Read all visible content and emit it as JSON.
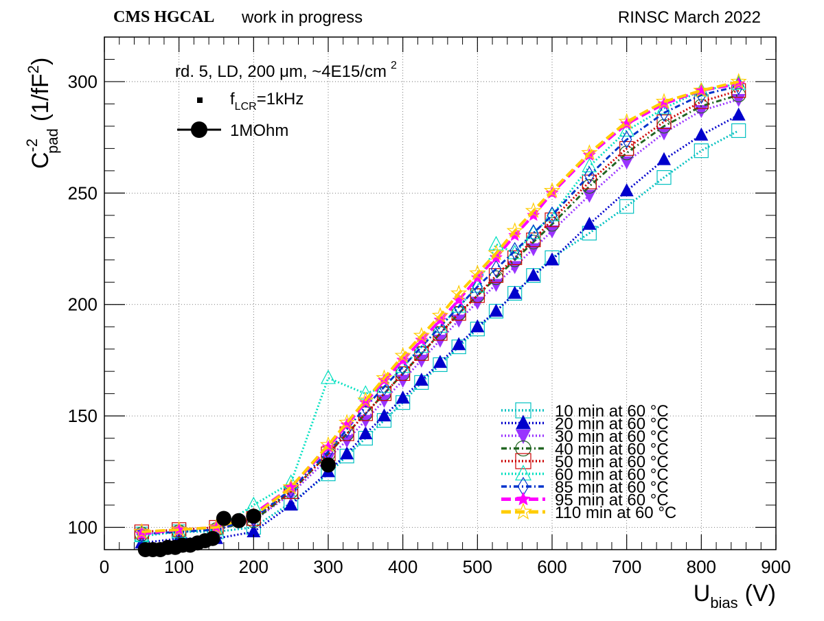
{
  "header": {
    "experiment": "CMS HGCAL",
    "status": "work in progress",
    "right_label": "RINSC March 2022"
  },
  "annotation": {
    "sample": "rd. 5, LD, 200 μm, ~4E15/cm",
    "sample_sup": "2",
    "lcr_prefix": "f",
    "lcr_sub": "LCR",
    "lcr_suffix": "=1kHz",
    "ohm_label": "1MOhm"
  },
  "axes": {
    "x_main": "U",
    "x_sub": "bias",
    "x_unit": "(V)",
    "y_main": "C",
    "y_sup": "-2",
    "y_sub": "pad",
    "y_unit_open": "(1/fF",
    "y_unit_sup": "2",
    "y_unit_close": ")"
  },
  "chart_data": {
    "type": "line",
    "title": "",
    "xlabel": "U_bias (V)",
    "ylabel": "C_pad^-2 (1/fF^2)",
    "xlim": [
      0,
      900
    ],
    "ylim": [
      90,
      320
    ],
    "xticks": [
      0,
      100,
      200,
      300,
      400,
      500,
      600,
      700,
      800,
      900
    ],
    "yticks": [
      100,
      150,
      200,
      250,
      300
    ],
    "grid": true,
    "legend_position": "bottom-right",
    "series": [
      {
        "name": "10 min at 60 °C",
        "color": "#00c0c0",
        "marker": "open-square",
        "dash": "dotted",
        "x": [
          50,
          100,
          150,
          200,
          250,
          300,
          325,
          350,
          375,
          400,
          425,
          450,
          475,
          500,
          525,
          550,
          575,
          600,
          650,
          700,
          750,
          800,
          850
        ],
        "y": [
          97,
          98,
          98,
          100,
          111,
          124,
          132,
          140,
          148,
          156,
          165,
          173,
          181,
          189,
          197,
          205,
          213,
          221,
          232,
          244,
          257,
          269,
          278
        ]
      },
      {
        "name": "20 min at 60 °C",
        "color": "#0000cc",
        "marker": "filled-triangle-up",
        "dash": "dotted",
        "x": [
          50,
          100,
          150,
          200,
          250,
          300,
          325,
          350,
          375,
          400,
          425,
          450,
          475,
          500,
          525,
          550,
          575,
          600,
          650,
          700,
          750,
          800,
          850
        ],
        "y": [
          93,
          95,
          95,
          98,
          110,
          125,
          133,
          142,
          150,
          158,
          166,
          174,
          182,
          190,
          197,
          205,
          213,
          220,
          236,
          251,
          265,
          276,
          285
        ]
      },
      {
        "name": "30 min at 60 °C",
        "color": "#9933ff",
        "marker": "filled-triangle-down",
        "dash": "dotted",
        "x": [
          50,
          100,
          150,
          200,
          250,
          300,
          325,
          350,
          375,
          400,
          425,
          450,
          475,
          500,
          525,
          550,
          575,
          600,
          650,
          700,
          750,
          800,
          850
        ],
        "y": [
          97,
          98,
          99,
          103,
          115,
          131,
          139,
          148,
          157,
          166,
          175,
          184,
          193,
          201,
          209,
          217,
          225,
          233,
          249,
          264,
          277,
          287,
          292
        ]
      },
      {
        "name": "40 min at 60 °C",
        "color": "#226622",
        "marker": "open-circle",
        "dash": "dash-dot",
        "x": [
          50,
          100,
          150,
          200,
          250,
          300,
          325,
          350,
          375,
          400,
          425,
          450,
          475,
          500,
          525,
          550,
          575,
          600,
          650,
          700,
          750,
          800,
          850
        ],
        "y": [
          97,
          98,
          99,
          103,
          116,
          133,
          142,
          151,
          160,
          169,
          178,
          187,
          196,
          204,
          212,
          220,
          228,
          236,
          253,
          268,
          280,
          289,
          294
        ]
      },
      {
        "name": "50 min at 60 °C",
        "color": "#cc0000",
        "marker": "open-square",
        "dash": "dotted",
        "x": [
          50,
          100,
          150,
          200,
          250,
          300,
          325,
          350,
          375,
          400,
          425,
          450,
          475,
          500,
          525,
          550,
          575,
          600,
          650,
          700,
          750,
          800,
          850
        ],
        "y": [
          98,
          99,
          100,
          104,
          116,
          133,
          142,
          151,
          160,
          169,
          178,
          187,
          196,
          204,
          213,
          221,
          229,
          238,
          255,
          270,
          282,
          291,
          296
        ]
      },
      {
        "name": "60 min at 60 °C",
        "color": "#00e0c0",
        "marker": "open-triangle-up",
        "dash": "dotted",
        "x": [
          50,
          100,
          150,
          200,
          250,
          300,
          350,
          375,
          400,
          425,
          450,
          475,
          500,
          525,
          550,
          575,
          600,
          650,
          700,
          750,
          800,
          850
        ],
        "y": [
          96,
          98,
          99,
          110,
          120,
          167,
          160,
          163,
          172,
          181,
          190,
          199,
          208,
          227,
          223,
          232,
          240,
          262,
          278,
          288,
          296,
          299
        ]
      },
      {
        "name": "85 min at 60 °C",
        "color": "#0033cc",
        "marker": "open-diamond",
        "dash": "dash-dot",
        "x": [
          50,
          100,
          150,
          200,
          250,
          300,
          325,
          350,
          375,
          400,
          425,
          450,
          475,
          500,
          525,
          550,
          575,
          600,
          650,
          700,
          750,
          800,
          850
        ],
        "y": [
          97,
          98,
          99,
          104,
          117,
          134,
          144,
          154,
          163,
          172,
          181,
          190,
          199,
          208,
          216,
          224,
          232,
          240,
          258,
          274,
          286,
          294,
          298
        ]
      },
      {
        "name": "95 min at 60 °C",
        "color": "#ff00ff",
        "marker": "filled-star",
        "dash": "dashed",
        "x": [
          50,
          100,
          150,
          200,
          250,
          300,
          325,
          350,
          375,
          400,
          425,
          450,
          475,
          500,
          525,
          550,
          575,
          600,
          650,
          700,
          750,
          800,
          850
        ],
        "y": [
          97,
          99,
          100,
          106,
          118,
          136,
          146,
          156,
          166,
          175,
          184,
          193,
          202,
          212,
          221,
          231,
          240,
          250,
          267,
          281,
          290,
          296,
          299
        ]
      },
      {
        "name": "110 min at 60 °C",
        "color": "#ffcc00",
        "marker": "open-star",
        "dash": "dashed",
        "x": [
          50,
          100,
          150,
          200,
          250,
          300,
          325,
          350,
          375,
          400,
          425,
          450,
          475,
          500,
          525,
          550,
          575,
          600,
          650,
          700,
          750,
          800,
          850
        ],
        "y": [
          98,
          99,
          100,
          105,
          118,
          137,
          147,
          157,
          167,
          177,
          186,
          195,
          205,
          214,
          223,
          233,
          242,
          251,
          268,
          282,
          291,
          296,
          300
        ]
      },
      {
        "name": "1MOhm",
        "color": "#000000",
        "marker": "filled-circle",
        "dash": "solid",
        "x": [
          55,
          65,
          75,
          85,
          95,
          105,
          115,
          125,
          135,
          145,
          160,
          180,
          200,
          300
        ],
        "y": [
          90,
          90,
          90,
          91,
          91,
          92,
          92,
          93,
          94,
          95,
          104,
          103,
          105,
          128
        ]
      }
    ]
  }
}
